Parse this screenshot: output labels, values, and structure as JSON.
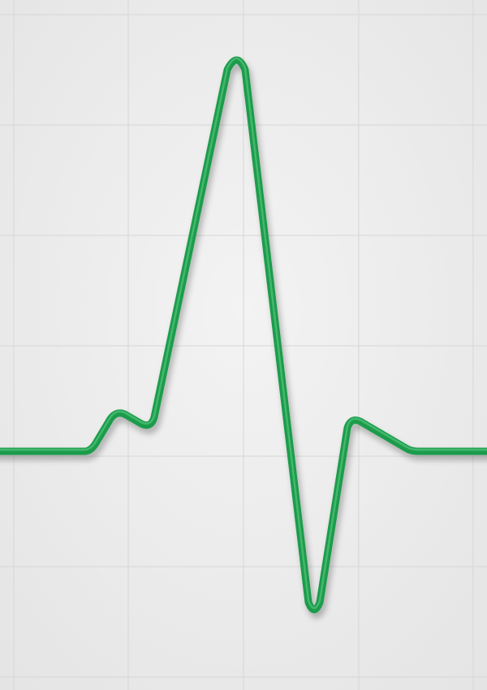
{
  "scene": {
    "subject": "ecg-waveform",
    "colors": {
      "background": "#f3f3f3",
      "background_edge": "#e4e4e4",
      "grid_line": "#d6d6d6",
      "trace": "#1f9c4c",
      "trace_highlight": "#5fd08a",
      "trace_shadow": "#0f6b30"
    }
  }
}
